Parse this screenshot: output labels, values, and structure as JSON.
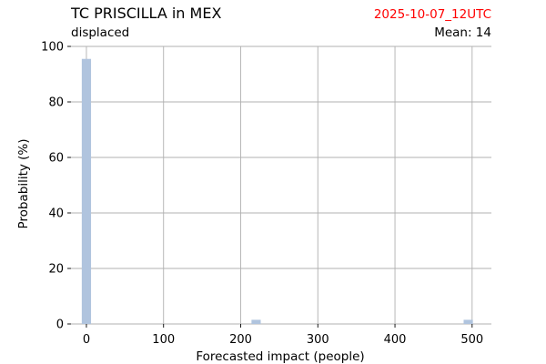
{
  "header": {
    "title": "TC PRISCILLA in MEX",
    "subtitle": "displaced",
    "date": "2025-10-07_12UTC",
    "mean_label": "Mean: 14"
  },
  "colors": {
    "bar": "#b0c4de",
    "date_text": "#ff0000",
    "grid": "#b0b0b0"
  },
  "chart_data": {
    "type": "bar",
    "title": "TC PRISCILLA in MEX",
    "subtitle": "displaced",
    "xlabel": "Forecasted impact (people)",
    "ylabel": "Probability (%)",
    "xlim": [
      -20,
      525
    ],
    "ylim": [
      0,
      100
    ],
    "xticks": [
      0,
      100,
      200,
      300,
      400,
      500
    ],
    "yticks": [
      0,
      20,
      40,
      60,
      80,
      100
    ],
    "grid": true,
    "bar_width": 12,
    "bars": [
      {
        "x": 0,
        "value": 95.5
      },
      {
        "x": 220,
        "value": 1.5
      },
      {
        "x": 495,
        "value": 1.5
      }
    ]
  }
}
